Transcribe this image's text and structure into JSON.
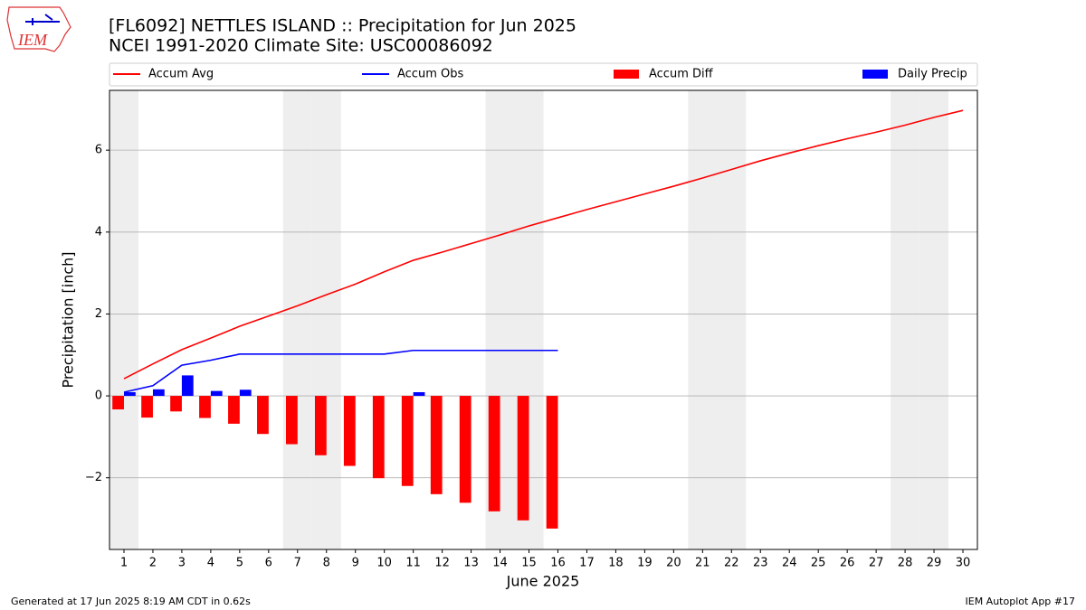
{
  "chart_data": {
    "type": "bar",
    "title": "[FL6092] NETTLES ISLAND :: Precipitation for Jun 2025",
    "subtitle": "NCEI 1991-2020 Climate Site: USC00086092",
    "logo_text": "IEM",
    "x_label": "June 2025",
    "y_label": "Precipitation [inch]",
    "footer_left": "Generated at 17 Jun 2025 8:19 AM CDT in 0.62s",
    "footer_right": "IEM Autoplot App #17",
    "x": [
      1,
      2,
      3,
      4,
      5,
      6,
      7,
      8,
      9,
      10,
      11,
      12,
      13,
      14,
      15,
      16,
      17,
      18,
      19,
      20,
      21,
      22,
      23,
      24,
      25,
      26,
      27,
      28,
      29,
      30
    ],
    "xlim": [
      0.5,
      30.5
    ],
    "xticks": [
      1,
      2,
      3,
      4,
      5,
      6,
      7,
      8,
      9,
      10,
      11,
      12,
      13,
      14,
      15,
      16,
      17,
      18,
      19,
      20,
      21,
      22,
      23,
      24,
      25,
      26,
      27,
      28,
      29,
      30
    ],
    "ylim": [
      -3.75,
      7.46
    ],
    "yticks": [
      {
        "value": -2,
        "label": "−2"
      },
      0,
      2,
      4,
      6
    ],
    "grid": true,
    "shaded_days": [
      1,
      7,
      8,
      14,
      15,
      21,
      22,
      28,
      29
    ],
    "shade_color": "#eeeeee",
    "series": [
      {
        "name": "Accum Avg",
        "type": "line",
        "color": "#ff0000",
        "values": [
          0.42,
          0.78,
          1.13,
          1.41,
          1.7,
          1.95,
          2.2,
          2.47,
          2.73,
          3.03,
          3.31,
          3.51,
          3.72,
          3.93,
          4.15,
          4.35,
          4.55,
          4.74,
          4.93,
          5.12,
          5.32,
          5.53,
          5.74,
          5.93,
          6.11,
          6.28,
          6.44,
          6.61,
          6.8,
          6.97
        ]
      },
      {
        "name": "Accum Obs",
        "type": "line",
        "color": "#0000ff",
        "values": [
          0.09,
          0.25,
          0.75,
          0.87,
          1.02,
          1.02,
          1.02,
          1.02,
          1.02,
          1.02,
          1.11,
          1.11,
          1.11,
          1.11,
          1.11,
          1.11,
          null,
          null,
          null,
          null,
          null,
          null,
          null,
          null,
          null,
          null,
          null,
          null,
          null,
          null
        ]
      },
      {
        "name": "Accum Diff",
        "type": "bar",
        "color": "#ff0000",
        "values": [
          -0.33,
          -0.53,
          -0.38,
          -0.54,
          -0.68,
          -0.93,
          -1.18,
          -1.45,
          -1.71,
          -2.01,
          -2.2,
          -2.4,
          -2.61,
          -2.82,
          -3.04,
          -3.24,
          null,
          null,
          null,
          null,
          null,
          null,
          null,
          null,
          null,
          null,
          null,
          null,
          null,
          null
        ]
      },
      {
        "name": "Daily Precip",
        "type": "bar",
        "color": "#0000ff",
        "values": [
          0.09,
          0.16,
          0.5,
          0.12,
          0.15,
          0,
          0,
          0,
          0,
          0,
          0.09,
          0,
          0,
          0,
          0,
          0,
          null,
          null,
          null,
          null,
          null,
          null,
          null,
          null,
          null,
          null,
          null,
          null,
          null,
          null
        ]
      }
    ]
  }
}
